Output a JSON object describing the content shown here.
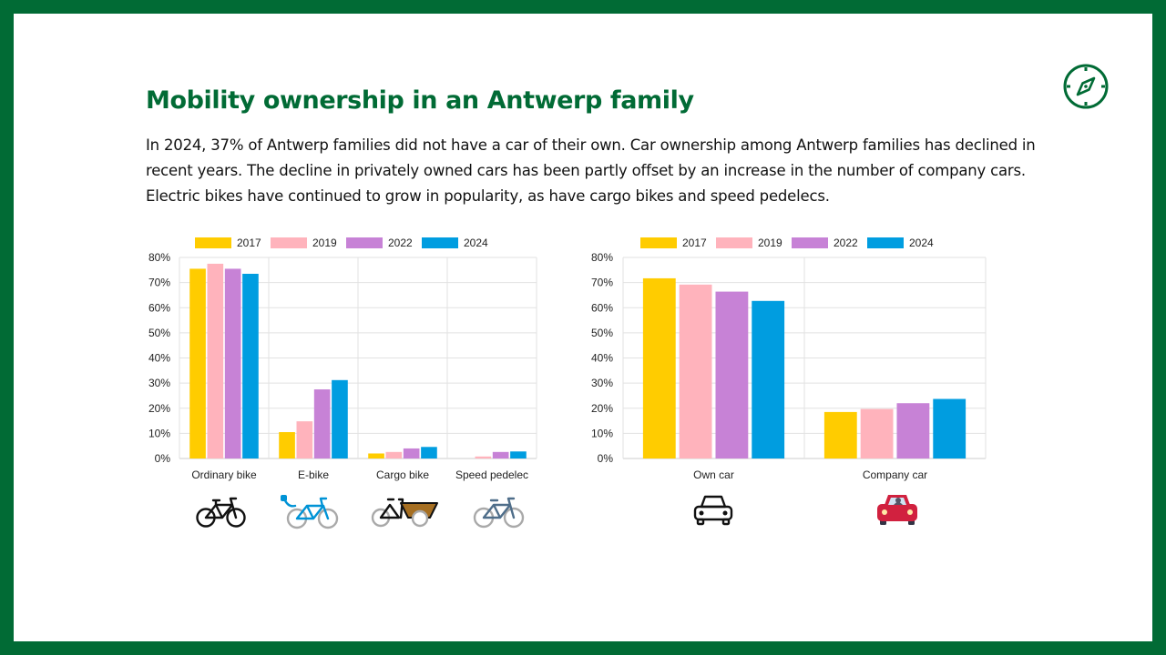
{
  "page": {
    "title": "Mobility ownership in an Antwerp family",
    "intro": "In 2024, 37% of Antwerp families did not have a car of their own. Car ownership among Antwerp families has declined in recent years. The decline in privately owned cars has been partly offset by an increase in the number of company cars. Electric bikes have continued to grow in popularity, as have cargo bikes and speed pedelecs.",
    "corner_icon": "compass-icon"
  },
  "colors": {
    "frame": "#016b35",
    "title": "#016b35",
    "series": [
      "#ffcc00",
      "#ffb3bc",
      "#c782d6",
      "#009de0"
    ]
  },
  "chart_data": [
    {
      "type": "bar",
      "categories": [
        "Ordinary bike",
        "E-bike",
        "Cargo bike",
        "Speed pedelec"
      ],
      "category_icons": [
        "bicycle-icon",
        "e-bike-icon",
        "cargo-bike-icon",
        "speed-pedelec-icon"
      ],
      "series": [
        {
          "name": "2017",
          "values": [
            75.5,
            10.5,
            2,
            0
          ]
        },
        {
          "name": "2019",
          "values": [
            77.5,
            14.8,
            2.6,
            0.8
          ]
        },
        {
          "name": "2022",
          "values": [
            75.5,
            27.5,
            4,
            2.6
          ]
        },
        {
          "name": "2024",
          "values": [
            73.5,
            31.2,
            4.6,
            2.8
          ]
        }
      ],
      "ylim": [
        0,
        80
      ],
      "yticks": [
        "0%",
        "10%",
        "20%",
        "30%",
        "40%",
        "50%",
        "60%",
        "70%",
        "80%"
      ],
      "grid": true,
      "legend": "top"
    },
    {
      "type": "bar",
      "categories": [
        "Own car",
        "Company car"
      ],
      "category_icons": [
        "car-outline-icon",
        "car-red-icon"
      ],
      "series": [
        {
          "name": "2017",
          "values": [
            71.7,
            18.5
          ]
        },
        {
          "name": "2019",
          "values": [
            69.2,
            19.7
          ]
        },
        {
          "name": "2022",
          "values": [
            66.4,
            22
          ]
        },
        {
          "name": "2024",
          "values": [
            62.7,
            23.7
          ]
        }
      ],
      "ylim": [
        0,
        80
      ],
      "yticks": [
        "0%",
        "10%",
        "20%",
        "30%",
        "40%",
        "50%",
        "60%",
        "70%",
        "80%"
      ],
      "grid": true,
      "legend": "top"
    }
  ]
}
